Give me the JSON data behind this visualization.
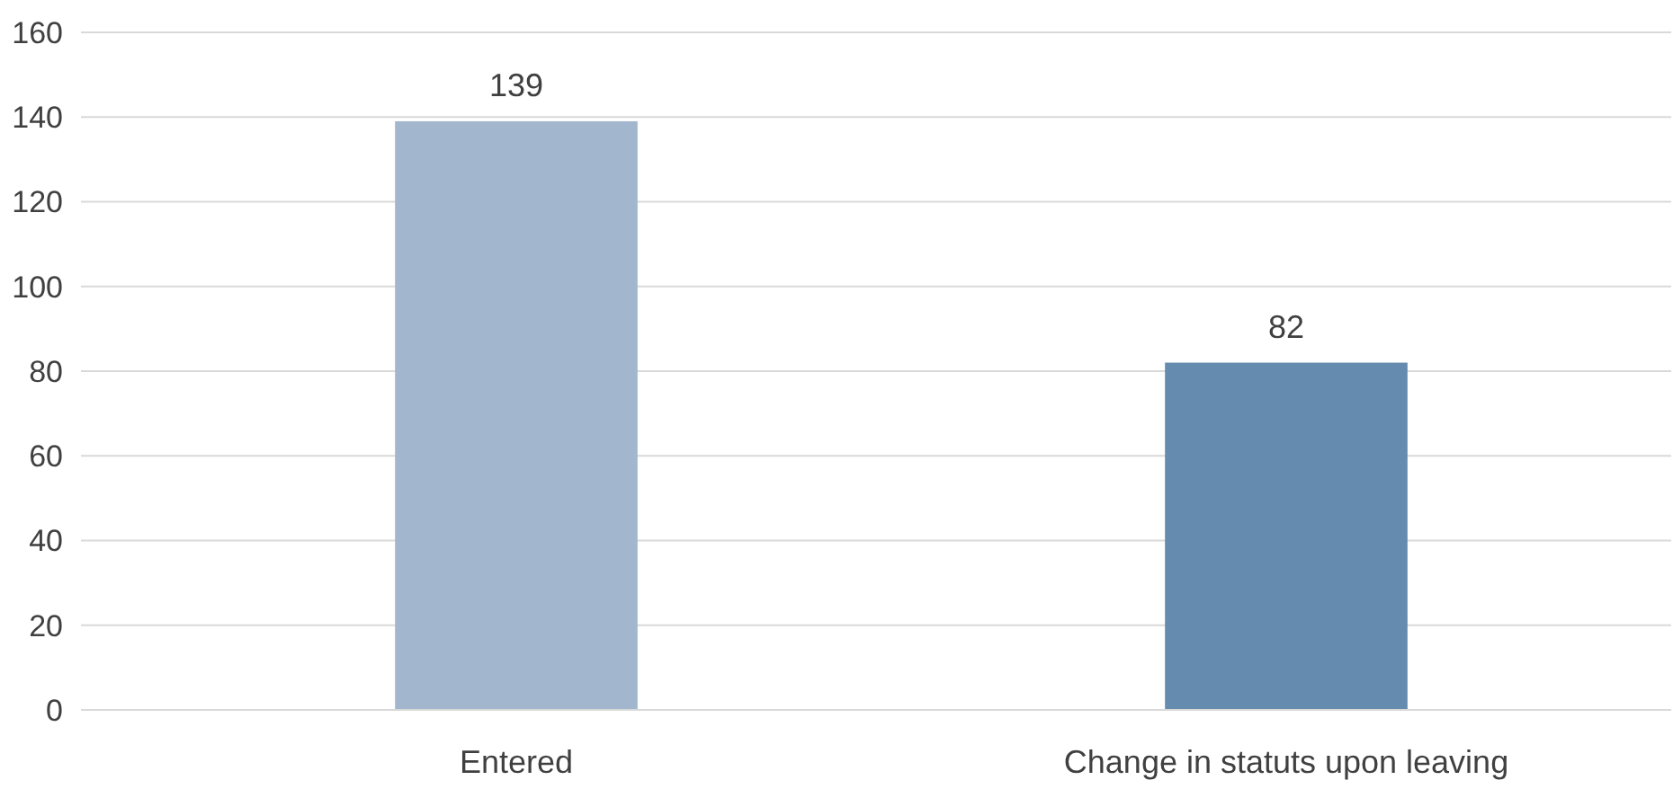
{
  "chart_data": {
    "type": "bar",
    "categories": [
      "Entered",
      "Change in statuts upon leaving"
    ],
    "values": [
      139,
      82
    ],
    "colors": [
      "#a2b7cd",
      "#658bae"
    ],
    "ylim": [
      0,
      160
    ],
    "yticks": [
      0,
      20,
      40,
      60,
      80,
      100,
      120,
      140,
      160
    ],
    "grid": "y",
    "data_labels": true
  }
}
